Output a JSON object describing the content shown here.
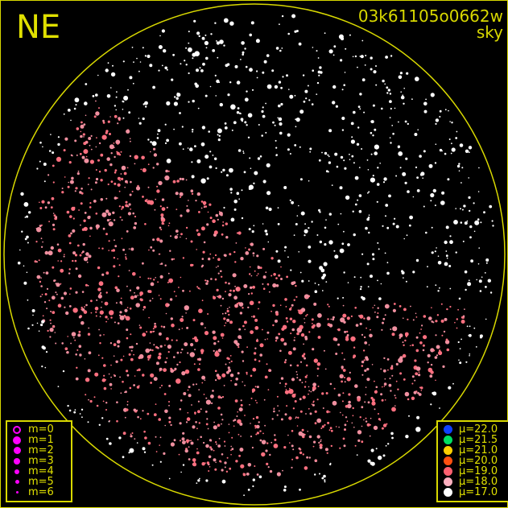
{
  "header": {
    "direction_label": "NE",
    "image_id": "03k61105o0662w",
    "image_type": "sky"
  },
  "colors": {
    "frame": "#d8d800",
    "text": "#e0e000",
    "magnitude_symbol": "#ff00ff"
  },
  "magnitude_legend": [
    {
      "label": "m=0",
      "style": "ring"
    },
    {
      "label": "m=1"
    },
    {
      "label": "m=2"
    },
    {
      "label": "m=3"
    },
    {
      "label": "m=4"
    },
    {
      "label": "m=5"
    },
    {
      "label": "m=6"
    }
  ],
  "sky_brightness_legend": [
    {
      "label": "μ=22.0",
      "color": "#1040ff"
    },
    {
      "label": "μ=21.5",
      "color": "#00e060"
    },
    {
      "label": "μ=21.0",
      "color": "#ffd000"
    },
    {
      "label": "μ=20.0",
      "color": "#ff5010"
    },
    {
      "label": "μ=19.0",
      "color": "#ff6070"
    },
    {
      "label": "μ=18.0",
      "color": "#ffb0c0"
    },
    {
      "label": "μ=17.0",
      "color": "#ffffff"
    }
  ]
}
